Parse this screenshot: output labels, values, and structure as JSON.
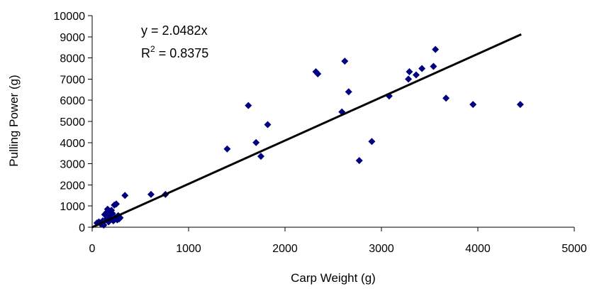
{
  "chart_data": {
    "type": "scatter",
    "title": "",
    "xlabel": "Carp Weight (g)",
    "ylabel": "Pulling Power (g)",
    "xlim": [
      0,
      5000
    ],
    "ylim": [
      0,
      10000
    ],
    "xticks": [
      0,
      1000,
      2000,
      3000,
      4000,
      5000
    ],
    "yticks": [
      0,
      1000,
      2000,
      3000,
      4000,
      5000,
      6000,
      7000,
      8000,
      9000,
      10000
    ],
    "xtick_labels": [
      "0",
      "1000",
      "2000",
      "3000",
      "4000",
      "5000"
    ],
    "ytick_labels": [
      "0",
      "1000",
      "2000",
      "3000",
      "4000",
      "5000",
      "6000",
      "7000",
      "8000",
      "9000",
      "10000"
    ],
    "grid": false,
    "legend": "none",
    "marker": "diamond",
    "marker_color": "#000080",
    "line_color": "#000000",
    "series": [
      {
        "points": [
          [
            50,
            200
          ],
          [
            70,
            250
          ],
          [
            90,
            150
          ],
          [
            110,
            300
          ],
          [
            120,
            100
          ],
          [
            130,
            600
          ],
          [
            140,
            350
          ],
          [
            150,
            700
          ],
          [
            160,
            850
          ],
          [
            170,
            250
          ],
          [
            180,
            500
          ],
          [
            190,
            400
          ],
          [
            200,
            800
          ],
          [
            210,
            650
          ],
          [
            220,
            300
          ],
          [
            230,
            1050
          ],
          [
            240,
            450
          ],
          [
            250,
            1100
          ],
          [
            260,
            350
          ],
          [
            270,
            550
          ],
          [
            280,
            400
          ],
          [
            290,
            450
          ],
          [
            340,
            1500
          ],
          [
            610,
            1550
          ],
          [
            760,
            1550
          ],
          [
            1400,
            3700
          ],
          [
            1620,
            5750
          ],
          [
            1700,
            4000
          ],
          [
            1750,
            3350
          ],
          [
            1820,
            4850
          ],
          [
            2320,
            7350
          ],
          [
            2340,
            7250
          ],
          [
            2590,
            5450
          ],
          [
            2620,
            7850
          ],
          [
            2660,
            6400
          ],
          [
            2770,
            3150
          ],
          [
            2900,
            4050
          ],
          [
            3080,
            6200
          ],
          [
            3280,
            7000
          ],
          [
            3290,
            7350
          ],
          [
            3360,
            7200
          ],
          [
            3420,
            7500
          ],
          [
            3540,
            7600
          ],
          [
            3560,
            8400
          ],
          [
            3670,
            6100
          ],
          [
            3950,
            5800
          ],
          [
            4440,
            5800
          ]
        ]
      }
    ],
    "trendline": {
      "type": "linear",
      "slope": 2.0482,
      "intercept": 0,
      "x_range": [
        0,
        4450
      ]
    },
    "annotations": {
      "equation": "y = 2.0482x",
      "r2_prefix": "R",
      "r2_superscript": "2",
      "r2_suffix": " = 0.8375"
    }
  }
}
